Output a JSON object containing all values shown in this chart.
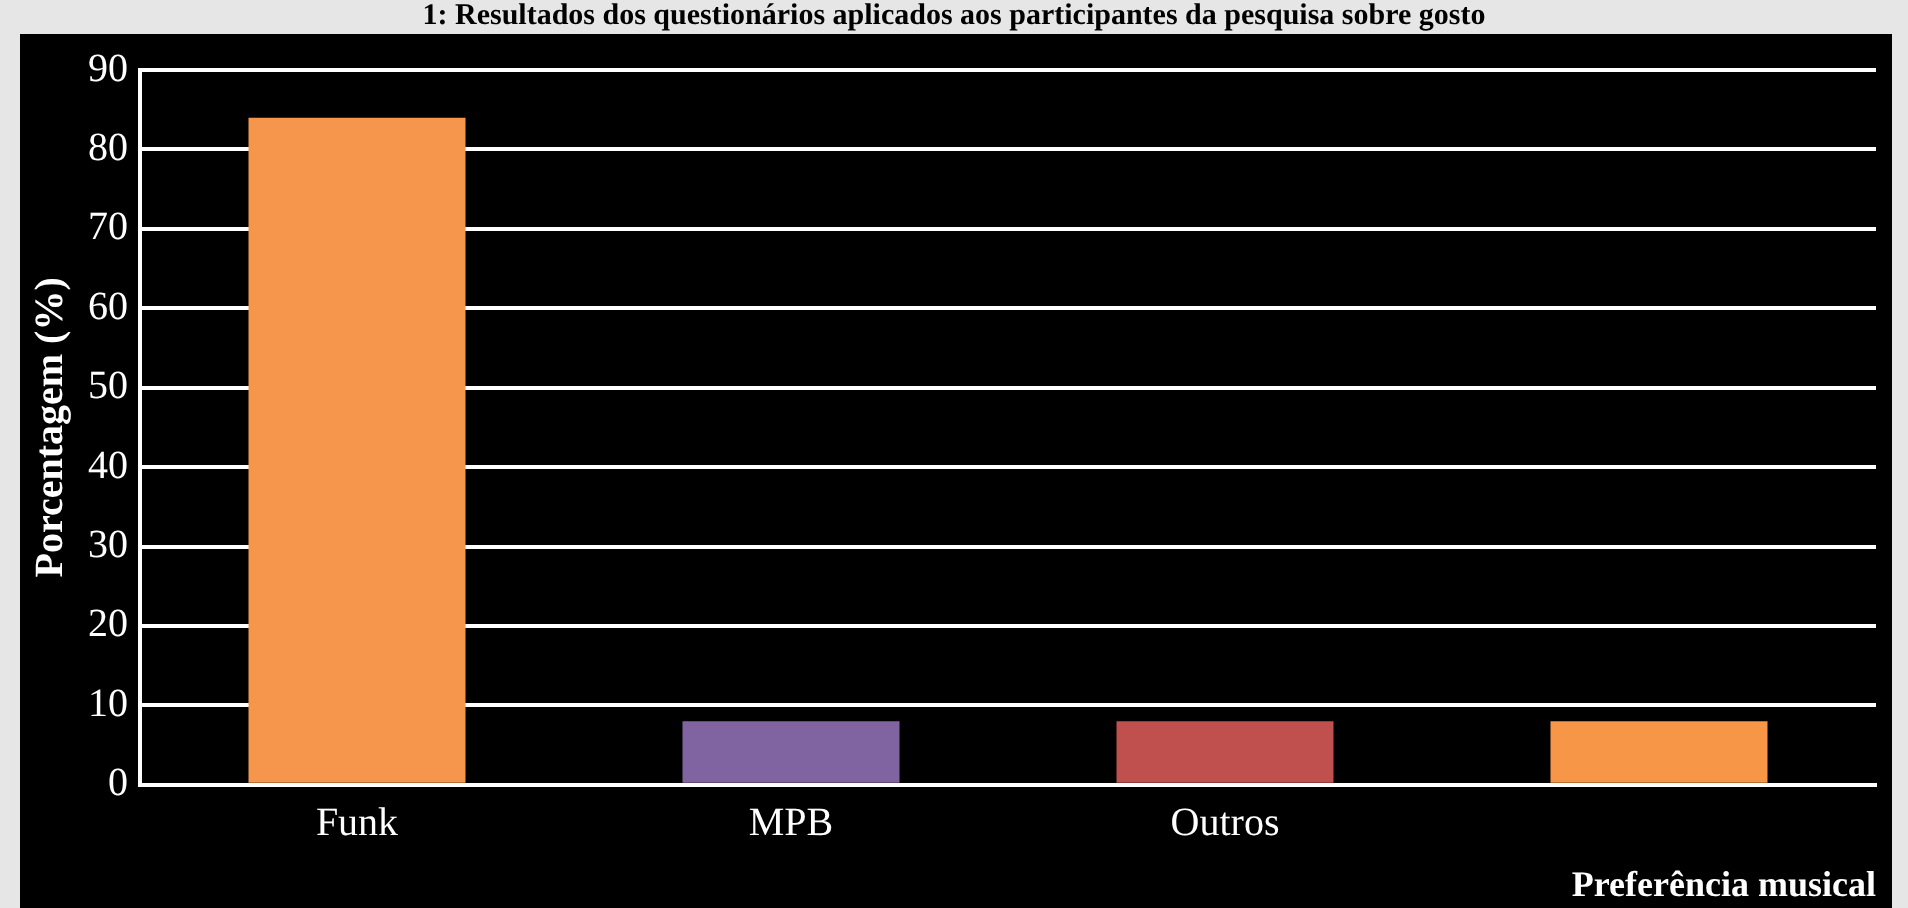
{
  "chart_data": {
    "type": "bar",
    "title": "1: Resultados dos questionários aplicados aos participantes da pesquisa sobre gosto",
    "categories": [
      "Funk",
      "MPB",
      "Outros",
      null
    ],
    "values": [
      84,
      8,
      8,
      8
    ],
    "colors": [
      "#f5964c",
      "#8064a2",
      "#c0504d",
      "#f79646"
    ],
    "xlabel": "Preferência musical",
    "ylabel": "Porcentagem (%)",
    "ylim": [
      0,
      90
    ],
    "yticks": [
      0,
      10,
      20,
      30,
      40,
      50,
      60,
      70,
      80,
      90
    ],
    "grid": "y",
    "legend": false
  }
}
